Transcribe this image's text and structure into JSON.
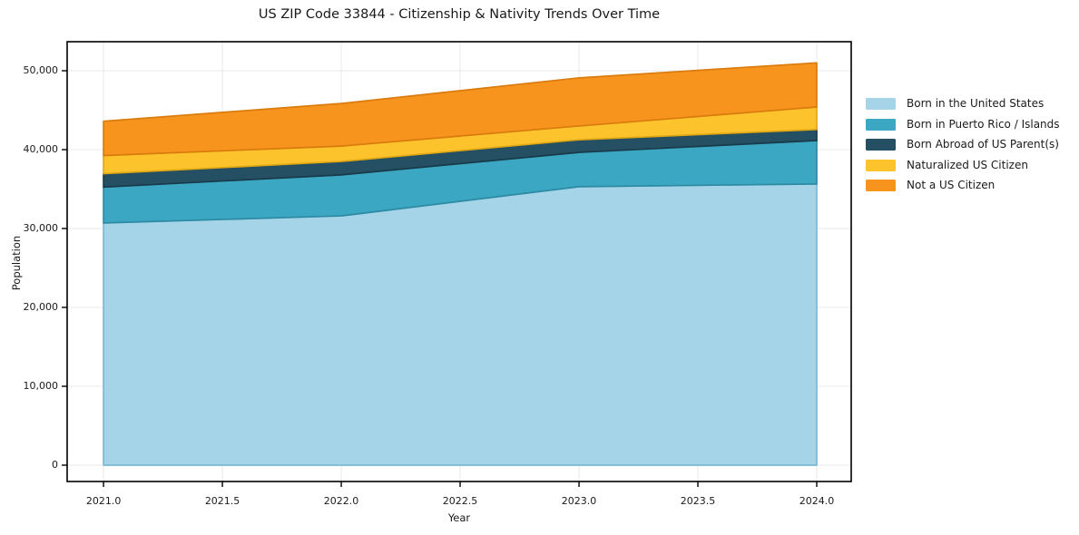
{
  "figure": {
    "title": "US ZIP Code 33844 - Citizenship & Nativity Trends Over Time",
    "background_color": "#ffffff"
  },
  "chart_data": {
    "type": "area",
    "stacked": true,
    "title": "US ZIP Code 33844 - Citizenship & Nativity Trends Over Time",
    "xlabel": "Year",
    "ylabel": "Population",
    "x": [
      2021,
      2022,
      2023,
      2024
    ],
    "series": [
      {
        "name": "Born in the United States",
        "color": "#a5d3e8",
        "edge_color": "#7cb9d4",
        "values": [
          30700,
          31600,
          35300,
          35650
        ]
      },
      {
        "name": "Born in Puerto Rico / Islands",
        "color": "#3ca7c2",
        "edge_color": "#2d8aa3",
        "values": [
          4550,
          5200,
          4350,
          5500
        ]
      },
      {
        "name": "Born Abroad of US Parent(s)",
        "color": "#255063",
        "edge_color": "#183b4a",
        "values": [
          1700,
          1700,
          1600,
          1400
        ]
      },
      {
        "name": "Naturalized US Citizen",
        "color": "#fcc32d",
        "edge_color": "#e0a714",
        "values": [
          2300,
          1950,
          1750,
          2850
        ]
      },
      {
        "name": "Not a US Citizen",
        "color": "#f7941e",
        "edge_color": "#d97b0d",
        "values": [
          4350,
          5400,
          6100,
          5600
        ]
      }
    ],
    "stack_totals": [
      43600,
      45850,
      49100,
      51000
    ],
    "xticks": [
      2021.0,
      2021.5,
      2022.0,
      2022.5,
      2023.0,
      2023.5,
      2024.0
    ],
    "xtick_labels": [
      "2021.0",
      "2021.5",
      "2022.0",
      "2022.5",
      "2023.0",
      "2023.5",
      "2024.0"
    ],
    "yticks": [
      0,
      10000,
      20000,
      30000,
      40000,
      50000
    ],
    "ytick_labels": [
      "0",
      "10,000",
      "20,000",
      "30,000",
      "40,000",
      "50,000"
    ],
    "xlim": [
      2020.847,
      2024.145
    ],
    "ylim": [
      -2070,
      53680
    ],
    "grid": true,
    "grid_color": "#e9e9e9",
    "axis_color": "#000000",
    "text_color": "#1a1a1a",
    "legend_position": "right"
  }
}
